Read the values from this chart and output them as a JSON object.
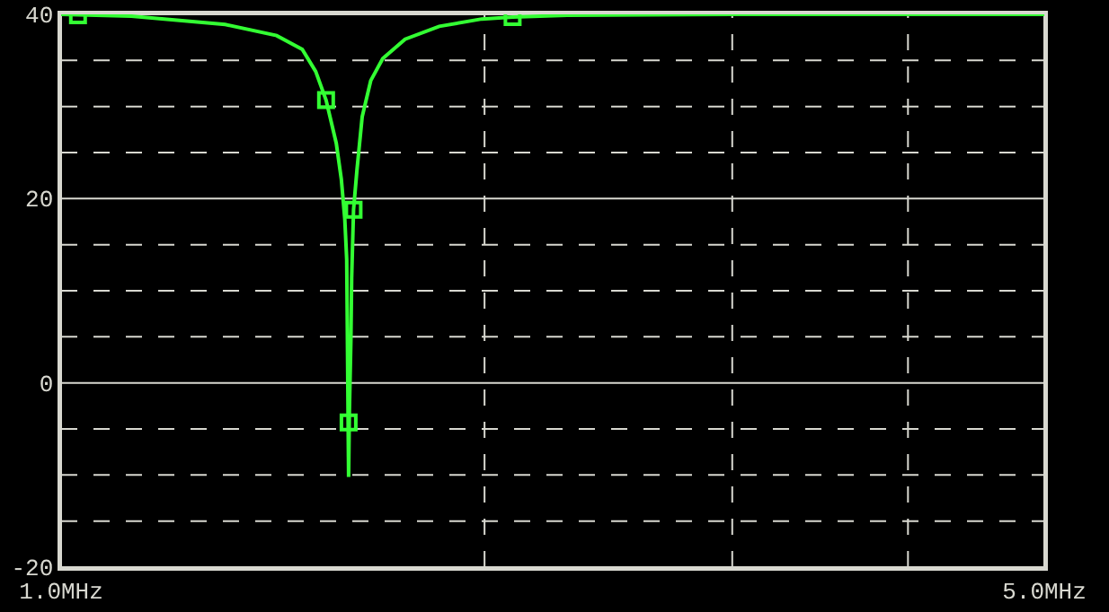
{
  "chart_data": {
    "type": "line",
    "log": "x",
    "xlim": [
      1.0,
      5.0
    ],
    "xticks": [
      {
        "value": 1.0,
        "label": "1.0MHz"
      },
      {
        "value": 2,
        "label": null
      },
      {
        "value": 3,
        "label": null
      },
      {
        "value": 4,
        "label": null
      },
      {
        "value": 5.0,
        "label": "5.0MHz"
      }
    ],
    "ylim": [
      -20,
      40
    ],
    "yticks": [
      -20,
      {
        "value": -15,
        "label": null
      },
      {
        "value": -10,
        "label": null
      },
      {
        "value": -5,
        "label": null
      },
      0,
      {
        "value": 5,
        "label": null
      },
      {
        "value": 10,
        "label": null
      },
      {
        "value": 15,
        "label": null
      },
      20,
      {
        "value": 25,
        "label": null
      },
      {
        "value": 30,
        "label": null
      },
      {
        "value": 35,
        "label": null
      },
      40
    ],
    "grid": true,
    "series": [
      {
        "color": "#33ff33",
        "marker": "none",
        "x": [
          1.0,
          1.122,
          1.308,
          1.423,
          1.484,
          1.517,
          1.543,
          1.569,
          1.582,
          1.591,
          1.596,
          1.601,
          1.603,
          1.607,
          1.609,
          1.614,
          1.623,
          1.637,
          1.66,
          1.693,
          1.756,
          1.857,
          1.991,
          2.094,
          2.29,
          3.0,
          5.0
        ],
        "values": [
          40,
          39.8,
          38.9,
          37.7,
          36.2,
          33.8,
          30.7,
          26.0,
          22.1,
          17.8,
          13.4,
          -10.2,
          -3.2,
          4.6,
          11.4,
          18.8,
          23.1,
          28.9,
          32.8,
          35.2,
          37.3,
          38.7,
          39.5,
          39.7,
          39.9,
          40,
          40
        ]
      },
      {
        "type": "scatter",
        "color": "#33ff33",
        "marker": "square",
        "x": [
          1.028,
          1.543,
          1.614,
          1.601,
          2.094
        ],
        "values": [
          39.9,
          30.7,
          18.8,
          -4.3,
          39.7
        ]
      }
    ]
  }
}
